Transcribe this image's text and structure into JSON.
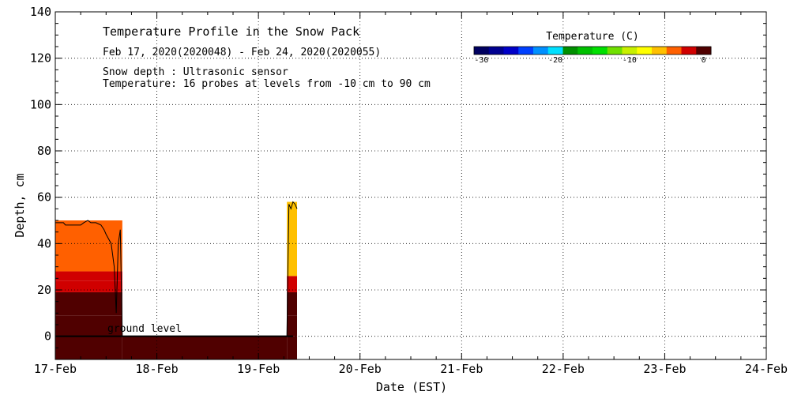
{
  "chart_data": {
    "type": "heatmap",
    "title": "Temperature Profile in the Snow Pack",
    "subtitle": "Feb 17, 2020(2020048) - Feb 24, 2020(2020055)",
    "notes": [
      "Snow depth : Ultrasonic sensor",
      "Temperature: 16 probes at levels from -10 cm to 90 cm"
    ],
    "annotation": "ground level",
    "xlabel": "Date (EST)",
    "ylabel": "Depth, cm",
    "x_ticks": [
      "17-Feb",
      "18-Feb",
      "19-Feb",
      "20-Feb",
      "21-Feb",
      "22-Feb",
      "23-Feb",
      "24-Feb"
    ],
    "xlim_days": [
      0,
      7
    ],
    "ylim": [
      -10,
      140
    ],
    "y_ticks": [
      0,
      20,
      40,
      60,
      80,
      100,
      120,
      140
    ],
    "grid": true,
    "colorbar": {
      "title": "Temperature (C)",
      "tick_labels": [
        "-30",
        "-20",
        "-10",
        "0"
      ],
      "tick_values": [
        -30,
        -20,
        -10,
        0
      ],
      "range": [
        -31,
        1
      ],
      "colors": [
        "#000060",
        "#000090",
        "#0000c8",
        "#0040ff",
        "#0090ff",
        "#00e0ff",
        "#009000",
        "#00c000",
        "#00e000",
        "#70e000",
        "#c8f000",
        "#ffff00",
        "#ffc000",
        "#ff6000",
        "#d00000",
        "#500000"
      ]
    },
    "snow_depth_series": {
      "x_days": [
        0.0,
        0.08,
        0.1,
        0.25,
        0.28,
        0.32,
        0.35,
        0.4,
        0.45,
        0.48,
        0.5,
        0.55,
        0.58,
        0.6,
        0.62,
        0.64,
        0.66,
        2.28,
        2.3,
        2.32,
        2.34,
        2.36,
        2.38
      ],
      "depth_cm": [
        49,
        49,
        48,
        48,
        49,
        50,
        49,
        49,
        48,
        46,
        44,
        40,
        30,
        10,
        40,
        46,
        0,
        0,
        57,
        55,
        58,
        57,
        55
      ]
    },
    "profile_bands": [
      {
        "x_start_days": 0.0,
        "x_end_days": 0.66,
        "bands": [
          {
            "from_cm": -10,
            "to_cm": 0,
            "temp_c": -1
          },
          {
            "from_cm": 0,
            "to_cm": 9,
            "temp_c": 0.5
          },
          {
            "from_cm": 9,
            "to_cm": 19,
            "temp_c": -1
          },
          {
            "from_cm": 19,
            "to_cm": 24,
            "temp_c": -2
          },
          {
            "from_cm": 24,
            "to_cm": 28,
            "temp_c": -3
          },
          {
            "from_cm": 28,
            "to_cm": 50,
            "temp_c": -5
          }
        ]
      },
      {
        "x_start_days": 0.66,
        "x_end_days": 2.28,
        "bands": [
          {
            "from_cm": -10,
            "to_cm": 0,
            "temp_c": -1
          }
        ]
      },
      {
        "x_start_days": 2.28,
        "x_end_days": 2.38,
        "bands": [
          {
            "from_cm": -10,
            "to_cm": 0,
            "temp_c": -1
          },
          {
            "from_cm": 0,
            "to_cm": 9,
            "temp_c": 0.5
          },
          {
            "from_cm": 9,
            "to_cm": 19,
            "temp_c": -1
          },
          {
            "from_cm": 19,
            "to_cm": 26,
            "temp_c": -3
          },
          {
            "from_cm": 26,
            "to_cm": 58,
            "temp_c": -7
          }
        ]
      }
    ]
  }
}
